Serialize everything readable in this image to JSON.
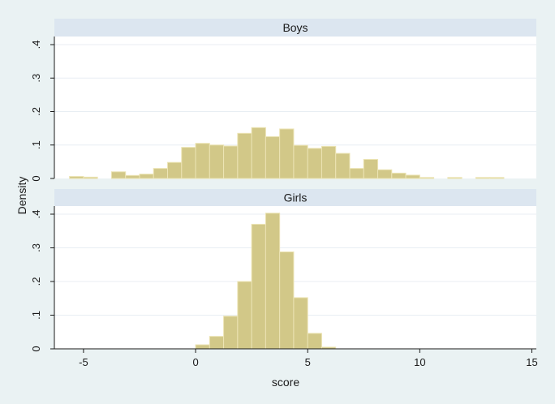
{
  "chart_data": {
    "type": "bar",
    "subtype": "histogram",
    "xlabel": "score",
    "ylabel": "Density",
    "xlim": [
      -6.3,
      15.2
    ],
    "ylim": [
      0,
      0.4
    ],
    "x_ticks": [
      {
        "value": -5,
        "label": "-5"
      },
      {
        "value": 0,
        "label": "0"
      },
      {
        "value": 5,
        "label": "5"
      },
      {
        "value": 10,
        "label": "10"
      },
      {
        "value": 15,
        "label": "15"
      }
    ],
    "y_ticks": [
      {
        "value": 0,
        "label": "0"
      },
      {
        "value": 0.1,
        "label": ".1"
      },
      {
        "value": 0.2,
        "label": ".2"
      },
      {
        "value": 0.3,
        "label": ".3"
      },
      {
        "value": 0.4,
        "label": ".4"
      }
    ],
    "bin_width": 0.625,
    "colors": {
      "bar_fill": "#d2c888",
      "bar_stroke": "#ece4b4",
      "plot_bg": "#ffffff",
      "outer_bg": "#eaf2f3",
      "strip_bg": "#dce6f0",
      "grid": "#e8eef3",
      "axis": "#1a1a1a"
    },
    "grid": true,
    "panels": [
      {
        "label": "Boys",
        "bins": [
          {
            "x0": -5.625,
            "x1": -5.0,
            "density": 0.006
          },
          {
            "x0": -5.0,
            "x1": -4.375,
            "density": 0.004
          },
          {
            "x0": -3.75,
            "x1": -3.125,
            "density": 0.02
          },
          {
            "x0": -3.125,
            "x1": -2.5,
            "density": 0.009
          },
          {
            "x0": -2.5,
            "x1": -1.875,
            "density": 0.013
          },
          {
            "x0": -1.875,
            "x1": -1.25,
            "density": 0.03
          },
          {
            "x0": -1.25,
            "x1": -0.625,
            "density": 0.048
          },
          {
            "x0": -0.625,
            "x1": 0.0,
            "density": 0.093
          },
          {
            "x0": 0.0,
            "x1": 0.625,
            "density": 0.105
          },
          {
            "x0": 0.625,
            "x1": 1.25,
            "density": 0.1
          },
          {
            "x0": 1.25,
            "x1": 1.875,
            "density": 0.097
          },
          {
            "x0": 1.875,
            "x1": 2.5,
            "density": 0.135
          },
          {
            "x0": 2.5,
            "x1": 3.125,
            "density": 0.152
          },
          {
            "x0": 3.125,
            "x1": 3.75,
            "density": 0.125
          },
          {
            "x0": 3.75,
            "x1": 4.375,
            "density": 0.148
          },
          {
            "x0": 4.375,
            "x1": 5.0,
            "density": 0.099
          },
          {
            "x0": 5.0,
            "x1": 5.625,
            "density": 0.09
          },
          {
            "x0": 5.625,
            "x1": 6.25,
            "density": 0.096
          },
          {
            "x0": 6.25,
            "x1": 6.875,
            "density": 0.075
          },
          {
            "x0": 6.875,
            "x1": 7.5,
            "density": 0.03
          },
          {
            "x0": 7.5,
            "x1": 8.125,
            "density": 0.057
          },
          {
            "x0": 8.125,
            "x1": 8.75,
            "density": 0.026
          },
          {
            "x0": 8.75,
            "x1": 9.375,
            "density": 0.016
          },
          {
            "x0": 9.375,
            "x1": 10.0,
            "density": 0.01
          },
          {
            "x0": 10.0,
            "x1": 10.625,
            "density": 0.003
          },
          {
            "x0": 11.25,
            "x1": 11.875,
            "density": 0.003
          },
          {
            "x0": 12.5,
            "x1": 13.125,
            "density": 0.003
          },
          {
            "x0": 13.125,
            "x1": 13.75,
            "density": 0.003
          }
        ]
      },
      {
        "label": "Girls",
        "bins": [
          {
            "x0": 0.0,
            "x1": 0.625,
            "density": 0.012
          },
          {
            "x0": 0.625,
            "x1": 1.25,
            "density": 0.037
          },
          {
            "x0": 1.25,
            "x1": 1.875,
            "density": 0.097
          },
          {
            "x0": 1.875,
            "x1": 2.5,
            "density": 0.2
          },
          {
            "x0": 2.5,
            "x1": 3.125,
            "density": 0.37
          },
          {
            "x0": 3.125,
            "x1": 3.75,
            "density": 0.403
          },
          {
            "x0": 3.75,
            "x1": 4.375,
            "density": 0.288
          },
          {
            "x0": 4.375,
            "x1": 5.0,
            "density": 0.152
          },
          {
            "x0": 5.0,
            "x1": 5.625,
            "density": 0.046
          },
          {
            "x0": 5.625,
            "x1": 6.25,
            "density": 0.005
          }
        ]
      }
    ]
  }
}
